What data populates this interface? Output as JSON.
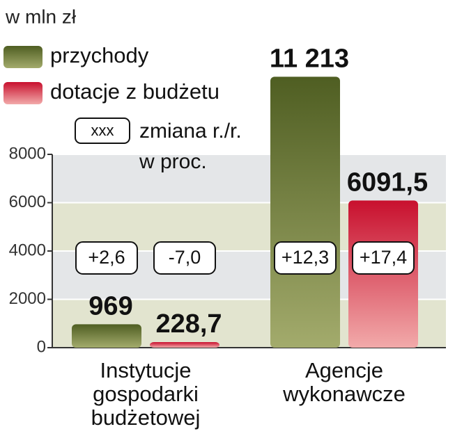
{
  "chart_data": {
    "type": "bar",
    "subtitle": "w mln zł",
    "categories": [
      "Instytucje gospodarki budżetowej",
      "Agencje wykonawcze"
    ],
    "series": [
      {
        "name": "przychody",
        "color": "#5b6a2c",
        "values": [
          969,
          11213
        ],
        "value_labels": [
          "969",
          "11 213"
        ],
        "change_labels": [
          "+2,6",
          "+12,3"
        ]
      },
      {
        "name": "dotacje z budżetu",
        "color": "#c8142f",
        "values": [
          228.7,
          6091.5
        ],
        "value_labels": [
          "228,7",
          "6091,5"
        ],
        "change_labels": [
          "-7,0",
          "+17,4"
        ]
      }
    ],
    "legend_note": {
      "box": "xxx",
      "lines": [
        "zmiana r./r.",
        "w proc."
      ]
    },
    "ylim": [
      0,
      8000
    ],
    "yticks": [
      0,
      2000,
      4000,
      6000,
      8000
    ],
    "grid": true
  }
}
